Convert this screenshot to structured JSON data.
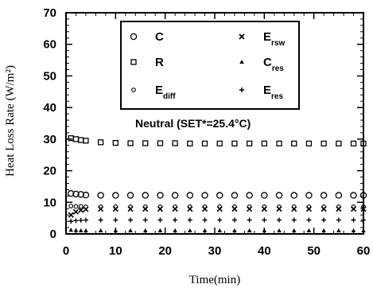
{
  "chart_data": {
    "type": "scatter",
    "xlabel": "Time(min)",
    "ylabel": "Heat Loss Rate (W/m²)",
    "xlim": [
      0,
      60
    ],
    "ylim": [
      0,
      70
    ],
    "xticks": [
      0,
      10,
      20,
      30,
      40,
      50,
      60
    ],
    "yticks": [
      0,
      10,
      20,
      30,
      40,
      50,
      60,
      70
    ],
    "grid": false,
    "legend_position": "top-center",
    "annotation": "Neutral  (SET*=25.4°C)",
    "series": [
      {
        "name": "C",
        "marker": "circle",
        "x": [
          1,
          2,
          3,
          4,
          7,
          10,
          13,
          16,
          19,
          22,
          25,
          28,
          31,
          34,
          37,
          40,
          43,
          46,
          49,
          52,
          55,
          58,
          60
        ],
        "y": [
          12.8,
          12.6,
          12.5,
          12.3,
          12.2,
          12.2,
          12.2,
          12.2,
          12.2,
          12.2,
          12.2,
          12.2,
          12.2,
          12.2,
          12.2,
          12.2,
          12.2,
          12.2,
          12.2,
          12.2,
          12.2,
          12.2,
          12.2
        ]
      },
      {
        "name": "R",
        "marker": "square",
        "x": [
          1,
          2,
          3,
          4,
          7,
          10,
          13,
          16,
          19,
          22,
          25,
          28,
          31,
          34,
          37,
          40,
          43,
          46,
          49,
          52,
          55,
          58,
          60
        ],
        "y": [
          30.3,
          30.0,
          29.7,
          29.5,
          29.0,
          28.8,
          28.7,
          28.7,
          28.7,
          28.7,
          28.6,
          28.6,
          28.6,
          28.6,
          28.6,
          28.6,
          28.6,
          28.6,
          28.6,
          28.6,
          28.6,
          28.6,
          28.6
        ]
      },
      {
        "name": "E",
        "sub": "diff",
        "marker": "small-circle",
        "x": [
          1,
          2,
          3,
          4,
          7,
          10,
          13,
          16,
          19,
          22,
          25,
          28,
          31,
          34,
          37,
          40,
          43,
          46,
          49,
          52,
          55,
          58,
          60
        ],
        "y": [
          8.8,
          8.7,
          8.7,
          8.6,
          8.6,
          8.6,
          8.6,
          8.6,
          8.6,
          8.6,
          8.6,
          8.6,
          8.6,
          8.6,
          8.6,
          8.6,
          8.6,
          8.6,
          8.6,
          8.6,
          8.6,
          8.6,
          8.6
        ]
      },
      {
        "name": "E",
        "sub": "rsw",
        "marker": "x",
        "x": [
          1,
          2,
          3,
          4,
          7,
          10,
          13,
          16,
          19,
          22,
          25,
          28,
          31,
          34,
          37,
          40,
          43,
          46,
          49,
          52,
          55,
          58,
          60
        ],
        "y": [
          6.0,
          7.0,
          7.5,
          7.8,
          7.9,
          7.9,
          7.9,
          7.9,
          7.9,
          7.9,
          7.9,
          7.9,
          7.9,
          7.9,
          7.9,
          7.9,
          7.9,
          7.9,
          7.9,
          7.9,
          7.9,
          7.9,
          7.9
        ]
      },
      {
        "name": "C",
        "sub": "res",
        "marker": "triangle",
        "x": [
          1,
          2,
          3,
          4,
          7,
          10,
          13,
          16,
          19,
          22,
          25,
          28,
          31,
          34,
          37,
          40,
          43,
          46,
          49,
          52,
          55,
          58,
          60
        ],
        "y": [
          1.2,
          1.1,
          1.0,
          1.0,
          1.0,
          1.0,
          1.0,
          1.0,
          1.0,
          1.0,
          1.0,
          1.0,
          1.0,
          1.0,
          1.0,
          1.0,
          1.0,
          1.0,
          1.0,
          1.0,
          1.0,
          1.0,
          1.0
        ]
      },
      {
        "name": "E",
        "sub": "res",
        "marker": "plus",
        "x": [
          1,
          2,
          3,
          4,
          7,
          10,
          13,
          16,
          19,
          22,
          25,
          28,
          31,
          34,
          37,
          40,
          43,
          46,
          49,
          52,
          55,
          58,
          60
        ],
        "y": [
          4.0,
          4.2,
          4.3,
          4.4,
          4.4,
          4.4,
          4.4,
          4.4,
          4.4,
          4.4,
          4.4,
          4.4,
          4.4,
          4.4,
          4.4,
          4.4,
          4.4,
          4.4,
          4.4,
          4.4,
          4.4,
          4.4,
          4.4
        ]
      }
    ]
  }
}
